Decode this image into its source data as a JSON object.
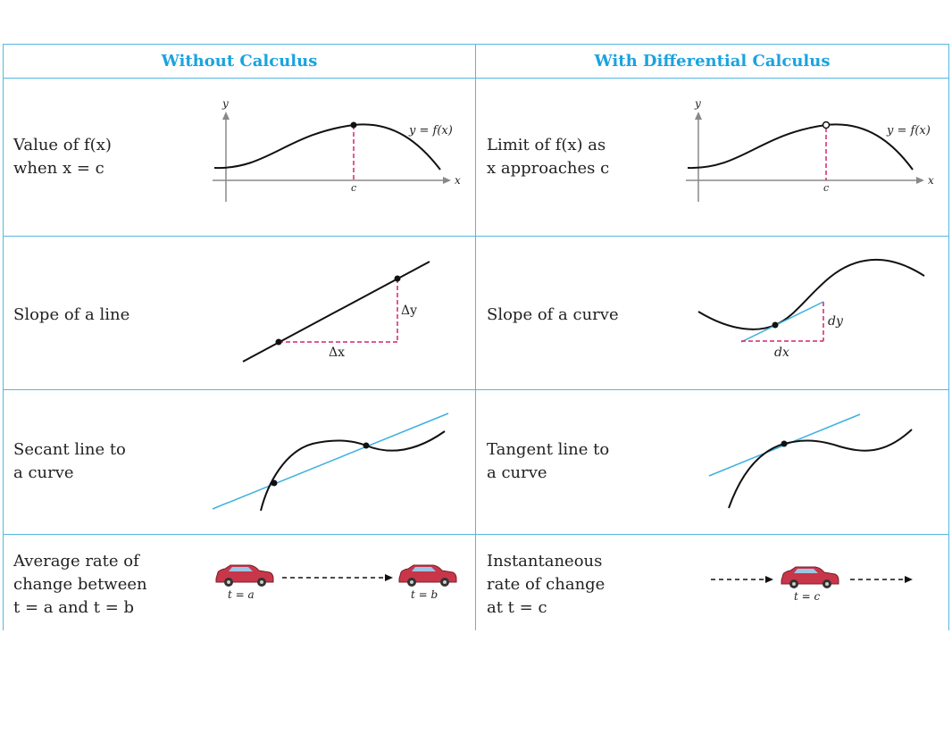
{
  "headers": {
    "left": "Without Calculus",
    "right": "With Differential Calculus"
  },
  "rows": [
    {
      "left": [
        "Value of f(x)",
        "when x = c"
      ],
      "right": [
        "Limit of f(x) as",
        "x approaches c"
      ]
    },
    {
      "left": [
        "Slope of a line"
      ],
      "right": [
        "Slope of a curve"
      ]
    },
    {
      "left": [
        "Secant line to",
        "a curve"
      ],
      "right": [
        "Tangent line to",
        "a curve"
      ]
    },
    {
      "left": [
        "Average rate of",
        "change between",
        "t = a and t = b"
      ],
      "right": [
        "Instantaneous",
        "rate of change",
        "at t = c"
      ]
    }
  ],
  "figure_labels": {
    "axis_x": "x",
    "axis_y": "y",
    "curve": "y = f(x)",
    "point_c": "c",
    "delta_y": "Δy",
    "delta_x": "Δx",
    "dy": "dy",
    "dx": "dx",
    "t_a": "t = a",
    "t_b": "t = b",
    "t_c": "t = c"
  },
  "colors": {
    "grid": "#56b7e3",
    "header": "#1aa3e0",
    "dashed": "#d6246e",
    "tangent": "#3fb0e0",
    "car_body": "#c8364a"
  }
}
